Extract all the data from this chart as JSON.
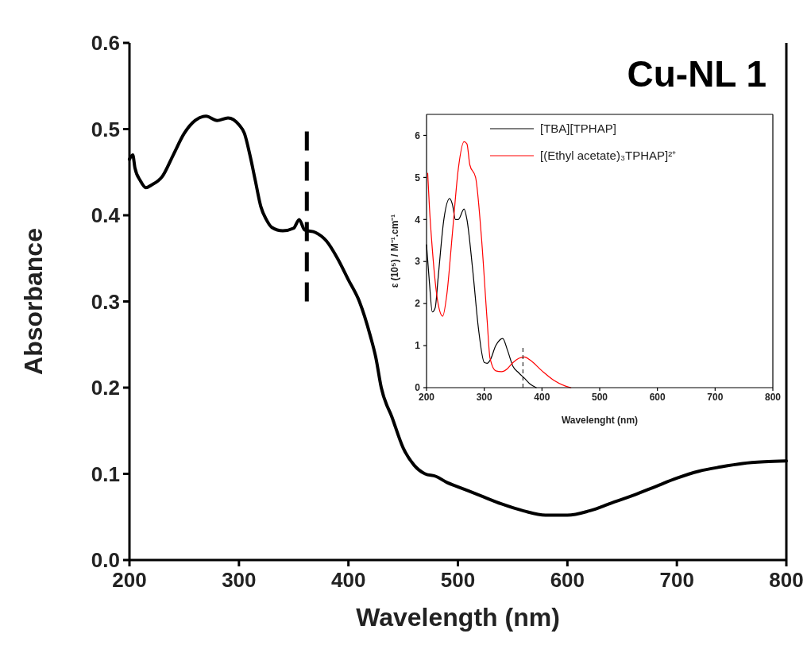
{
  "chart_data": [
    {
      "type": "line",
      "xlabel": "Wavelength (nm)",
      "ylabel": "Absorbance",
      "annotations": [
        "Cu-NL 1"
      ],
      "xlim": [
        200,
        800
      ],
      "ylim": [
        0,
        0.6
      ],
      "xticks": [
        200,
        300,
        400,
        500,
        600,
        700,
        800
      ],
      "yticks": [
        {
          "value": 0,
          "label": "0.0"
        },
        0.1,
        0.2,
        0.3,
        0.4,
        0.5,
        0.6
      ],
      "grid": false,
      "legend": false,
      "ref_lines": [
        {
          "axis": "x",
          "value": 362,
          "color": "#000000",
          "line_style": "dashed"
        }
      ],
      "series": [
        {
          "color": "#000000",
          "x": [
            200,
            203,
            205,
            210,
            215,
            220,
            230,
            240,
            250,
            260,
            270,
            280,
            290,
            300,
            305,
            310,
            315,
            320,
            325,
            330,
            340,
            350,
            355,
            360,
            370,
            380,
            390,
            400,
            410,
            420,
            425,
            430,
            440,
            450,
            460,
            470,
            480,
            490,
            500,
            520,
            540,
            560,
            580,
            600,
            620,
            640,
            660,
            680,
            700,
            720,
            740,
            760,
            780,
            800
          ],
          "values": [
            0.465,
            0.47,
            0.455,
            0.44,
            0.432,
            0.435,
            0.445,
            0.47,
            0.495,
            0.51,
            0.515,
            0.51,
            0.513,
            0.505,
            0.495,
            0.47,
            0.44,
            0.41,
            0.395,
            0.386,
            0.382,
            0.385,
            0.395,
            0.383,
            0.38,
            0.37,
            0.35,
            0.325,
            0.3,
            0.26,
            0.235,
            0.2,
            0.165,
            0.13,
            0.11,
            0.1,
            0.097,
            0.09,
            0.085,
            0.075,
            0.065,
            0.057,
            0.052,
            0.052,
            0.057,
            0.066,
            0.075,
            0.085,
            0.095,
            0.103,
            0.108,
            0.112,
            0.114,
            0.115
          ]
        }
      ]
    },
    {
      "type": "line",
      "xlabel": "Wavelenght (nm)",
      "ylabel": "ε (10⁵) / M⁻¹.cm⁻¹",
      "xlim": [
        200,
        800
      ],
      "ylim": [
        0,
        6.5
      ],
      "xticks": [
        200,
        300,
        400,
        500,
        600,
        700,
        800
      ],
      "yticks": [
        0,
        1,
        2,
        3,
        4,
        5,
        6
      ],
      "grid": false,
      "legend": "top",
      "ref_lines": [
        {
          "axis": "x",
          "value": 367,
          "color": "#000000",
          "line_style": "dashed"
        }
      ],
      "series": [
        {
          "name": "[TBA][TPHAP]",
          "color": "#000000",
          "x": [
            200,
            205,
            210,
            215,
            220,
            230,
            240,
            245,
            250,
            255,
            265,
            270,
            280,
            290,
            300,
            305,
            310,
            320,
            332,
            340,
            350,
            360,
            370,
            380,
            390
          ],
          "values": [
            3.4,
            2.5,
            1.8,
            1.9,
            2.6,
            4.0,
            4.5,
            4.35,
            4.0,
            4.0,
            4.25,
            4.0,
            2.8,
            1.4,
            0.6,
            0.58,
            0.65,
            1.0,
            1.17,
            0.9,
            0.5,
            0.35,
            0.22,
            0.08,
            0.0
          ]
        },
        {
          "name": "[(Ethyl acetate)₃TPHAP]²⁺",
          "color": "#ff0000",
          "x": [
            202,
            205,
            210,
            220,
            228,
            235,
            245,
            255,
            265,
            270,
            275,
            285,
            295,
            305,
            310,
            320,
            330,
            340,
            350,
            360,
            370,
            380,
            400,
            420,
            440,
            450
          ],
          "values": [
            5.1,
            4.3,
            3.3,
            2.0,
            1.7,
            2.2,
            3.7,
            5.2,
            5.85,
            5.8,
            5.3,
            5.0,
            3.6,
            1.6,
            0.7,
            0.4,
            0.38,
            0.45,
            0.6,
            0.7,
            0.73,
            0.65,
            0.4,
            0.18,
            0.04,
            0.0
          ]
        }
      ]
    }
  ]
}
